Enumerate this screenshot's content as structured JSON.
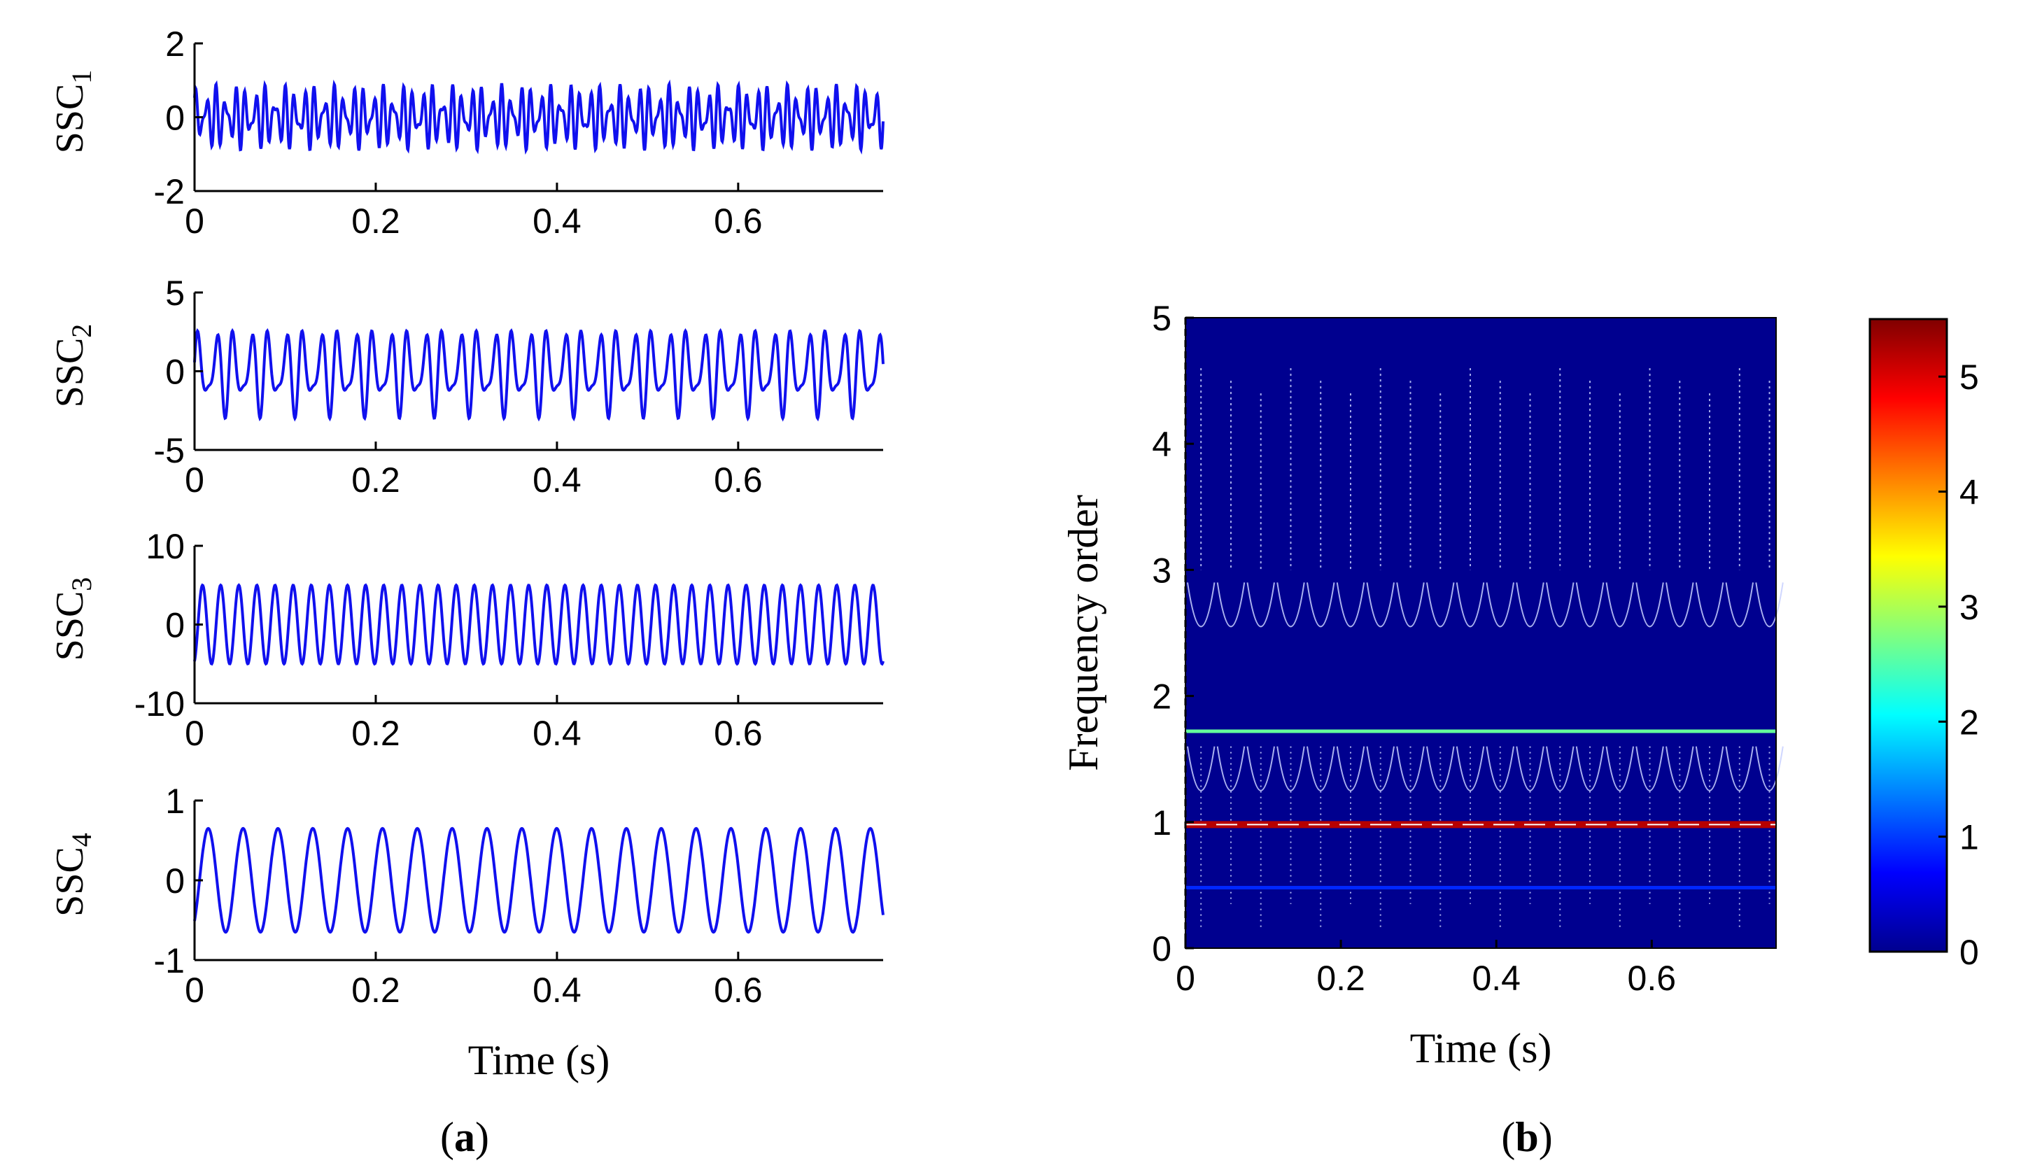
{
  "panel_labels": {
    "a": {
      "open": "(",
      "letter": "a",
      "close": ")"
    },
    "b": {
      "open": "(",
      "letter": "b",
      "close": ")"
    }
  },
  "chart_data": [
    {
      "type": "line",
      "id": "ssc1",
      "ylabel_main": "SSC",
      "ylabel_sub": "1",
      "xlabel": "",
      "xlim": [
        0,
        0.76
      ],
      "ylim": [
        -2,
        2
      ],
      "xticks": [
        0,
        0.2,
        0.4,
        0.6
      ],
      "xtick_labels": [
        "0",
        "0.2",
        "0.4",
        "0.6"
      ],
      "yticks": [
        -2,
        0,
        2
      ],
      "ytick_labels": [
        "-2",
        "0",
        "2"
      ],
      "color": "#1010ee",
      "series": [
        {
          "name": "SSC1",
          "components": [
            {
              "amplitude": 0.55,
              "frequency_hz": 92,
              "phase": 0.4
            },
            {
              "amplitude": 0.35,
              "frequency_hz": 130,
              "phase": 1.1
            }
          ],
          "points": 1400
        }
      ]
    },
    {
      "type": "line",
      "id": "ssc2",
      "ylabel_main": "SSC",
      "ylabel_sub": "2",
      "xlabel": "",
      "xlim": [
        0,
        0.76
      ],
      "ylim": [
        -5,
        5
      ],
      "xticks": [
        0,
        0.2,
        0.4,
        0.6
      ],
      "xtick_labels": [
        "0",
        "0.2",
        "0.4",
        "0.6"
      ],
      "yticks": [
        -5,
        0,
        5
      ],
      "ytick_labels": [
        "-5",
        "0",
        "5"
      ],
      "color": "#1010ee",
      "series": [
        {
          "name": "SSC2",
          "components": [
            {
              "amplitude": 2.0,
              "frequency_hz": 52,
              "phase": 0.0
            },
            {
              "amplitude": 1.0,
              "frequency_hz": 78,
              "phase": 0.6
            }
          ],
          "points": 1400
        }
      ]
    },
    {
      "type": "line",
      "id": "ssc3",
      "ylabel_main": "SSC",
      "ylabel_sub": "3",
      "xlabel": "",
      "xlim": [
        0,
        0.76
      ],
      "ylim": [
        -10,
        10
      ],
      "xticks": [
        0,
        0.2,
        0.4,
        0.6
      ],
      "xtick_labels": [
        "0",
        "0.2",
        "0.4",
        "0.6"
      ],
      "yticks": [
        -10,
        0,
        10
      ],
      "ytick_labels": [
        "-10",
        "0",
        "10"
      ],
      "color": "#1010ee",
      "series": [
        {
          "name": "SSC3",
          "components": [
            {
              "amplitude": 5.0,
              "frequency_hz": 50,
              "phase": -1.2
            }
          ],
          "points": 1400
        }
      ]
    },
    {
      "type": "line",
      "id": "ssc4",
      "ylabel_main": "SSC",
      "ylabel_sub": "4",
      "xlabel": "Time (s)",
      "xlim": [
        0,
        0.76
      ],
      "ylim": [
        -1,
        1
      ],
      "xticks": [
        0,
        0.2,
        0.4,
        0.6
      ],
      "xtick_labels": [
        "0",
        "0.2",
        "0.4",
        "0.6"
      ],
      "yticks": [
        -1,
        0,
        1
      ],
      "ytick_labels": [
        "-1",
        "0",
        "1"
      ],
      "color": "#1010ee",
      "series": [
        {
          "name": "SSC4",
          "components": [
            {
              "amplitude": 0.65,
              "frequency_hz": 26,
              "phase": -0.9
            }
          ],
          "points": 1400
        }
      ]
    },
    {
      "type": "heatmap",
      "id": "tf-map",
      "xlabel": "Time (s)",
      "ylabel": "Frequency order",
      "xlim": [
        0,
        0.76
      ],
      "ylim": [
        0,
        5
      ],
      "xticks": [
        0,
        0.2,
        0.4,
        0.6
      ],
      "xtick_labels": [
        "0",
        "0.2",
        "0.4",
        "0.6"
      ],
      "yticks": [
        0,
        1,
        2,
        3,
        4,
        5
      ],
      "ytick_labels": [
        "0",
        "1",
        "2",
        "3",
        "4",
        "5"
      ],
      "background_value": 0,
      "ridges": [
        {
          "name": "order-1 ridge",
          "frequency_order": 0.98,
          "value": 5.2
        },
        {
          "name": "order-1.7 ridge",
          "frequency_order": 1.72,
          "value": 2.6
        },
        {
          "name": "order-0.5 line",
          "frequency_order": 0.48,
          "value": 0.9
        }
      ],
      "scattered_streaks": {
        "period_s": 0.0385,
        "count": 20,
        "top_order": 4.6,
        "lobe_bottom_order": 2.5,
        "mid_order": 2.9
      },
      "colorbar": {
        "range": [
          0,
          5.5
        ],
        "ticks": [
          0,
          1,
          2,
          3,
          4,
          5
        ],
        "tick_labels": [
          "0",
          "1",
          "2",
          "3",
          "4",
          "5"
        ]
      }
    }
  ]
}
